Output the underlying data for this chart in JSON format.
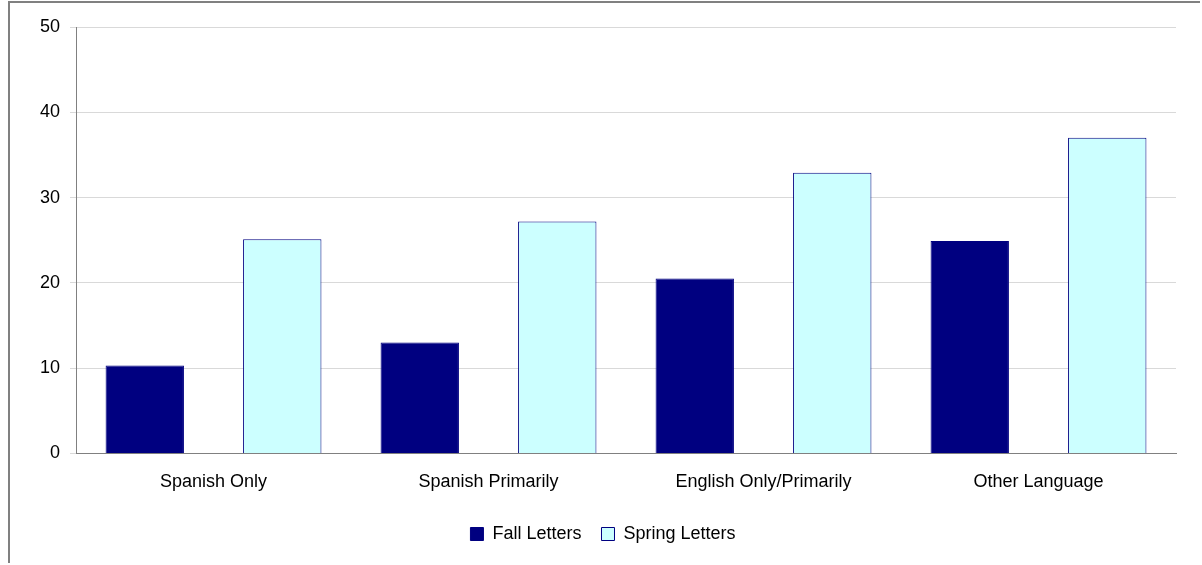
{
  "chart_data": {
    "type": "bar",
    "categories": [
      "Spanish Only",
      "Spanish Primarily",
      "English Only/Primarily",
      "Other Language"
    ],
    "series": [
      {
        "name": "Fall Letters",
        "color": "#000080",
        "values": [
          10.3,
          13.0,
          20.5,
          24.9
        ]
      },
      {
        "name": "Spring Letters",
        "color": "#ccffff",
        "values": [
          25.1,
          27.2,
          32.9,
          37.0
        ]
      }
    ],
    "ylim": [
      0,
      50
    ],
    "yticks": [
      0,
      10,
      20,
      30,
      40,
      50
    ],
    "grid": "y",
    "legend": "bottom"
  }
}
